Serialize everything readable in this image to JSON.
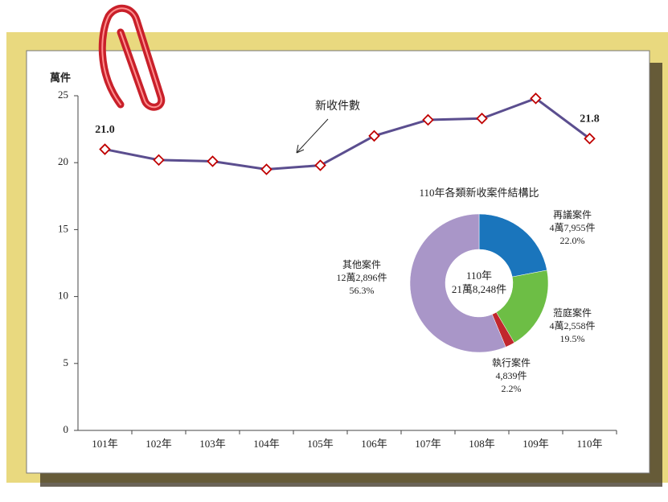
{
  "chart_data": [
    {
      "type": "line",
      "y_label": "萬件",
      "annotation": "新收件數",
      "categories": [
        "101年",
        "102年",
        "103年",
        "104年",
        "105年",
        "106年",
        "107年",
        "108年",
        "109年",
        "110年"
      ],
      "values": [
        21.0,
        20.2,
        20.1,
        19.5,
        19.8,
        22.0,
        23.2,
        23.3,
        24.8,
        21.8
      ],
      "value_labels": [
        "21.0",
        null,
        null,
        null,
        null,
        null,
        null,
        null,
        null,
        "21.8"
      ],
      "color": "#5b4e8f",
      "marker_color": "#c00000",
      "label_color": "#7030a0",
      "ylim": [
        0,
        25
      ],
      "yticks": [
        0,
        5,
        10,
        15,
        20,
        25
      ]
    },
    {
      "type": "pie",
      "title": "110年各類新收案件結構比",
      "center_label": "110年",
      "total_label": "21萬8,248件",
      "categories": [
        "再議案件",
        "蒞庭案件",
        "執行案件",
        "其他案件"
      ],
      "counts": [
        47955,
        42558,
        4839,
        122896
      ],
      "count_labels": [
        "4萬7,955件",
        "4萬2,558件",
        "4,839件",
        "12萬2,896件"
      ],
      "values": [
        22.0,
        19.5,
        2.2,
        56.3
      ],
      "value_labels": [
        "22.0%",
        "19.5%",
        "2.2%",
        "56.3%"
      ],
      "colors": [
        "#1a75bc",
        "#6dbe45",
        "#c1272d",
        "#a996c8"
      ]
    }
  ]
}
